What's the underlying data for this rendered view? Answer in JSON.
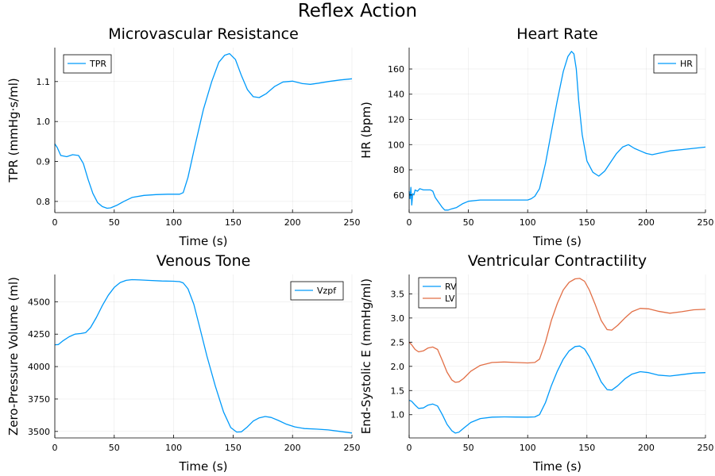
{
  "figure": {
    "title": "Reflex Action"
  },
  "chart_data": [
    {
      "type": "line",
      "title": "Microvascular Resistance",
      "xlabel": "Time (s)",
      "ylabel": "TPR (mmHg·s/ml)",
      "xlim": [
        0,
        250
      ],
      "ylim": [
        0.772,
        1.185
      ],
      "xticks": [
        0,
        50,
        100,
        150,
        200,
        250
      ],
      "yticks": [
        0.8,
        0.9,
        1.0,
        1.1
      ],
      "ytick_labels": [
        "0.8",
        "0.9",
        "1.0",
        "1.1"
      ],
      "grid": true,
      "legend": "top-left",
      "series": [
        {
          "name": "TPR",
          "color": "#009AFA",
          "x": [
            0,
            2,
            5,
            10,
            15,
            20,
            24,
            28,
            32,
            36,
            40,
            44,
            47,
            52,
            58,
            65,
            75,
            85,
            95,
            105,
            108,
            112,
            118,
            125,
            132,
            138,
            143,
            147,
            152,
            157,
            162,
            167,
            172,
            178,
            185,
            192,
            200,
            208,
            215,
            222,
            230,
            240,
            250
          ],
          "y": [
            0.944,
            0.935,
            0.915,
            0.912,
            0.917,
            0.915,
            0.895,
            0.855,
            0.82,
            0.797,
            0.787,
            0.783,
            0.784,
            0.79,
            0.8,
            0.81,
            0.815,
            0.817,
            0.818,
            0.818,
            0.822,
            0.86,
            0.94,
            1.03,
            1.1,
            1.148,
            1.166,
            1.17,
            1.155,
            1.115,
            1.08,
            1.062,
            1.06,
            1.07,
            1.088,
            1.099,
            1.101,
            1.095,
            1.093,
            1.096,
            1.1,
            1.104,
            1.107
          ]
        }
      ]
    },
    {
      "type": "line",
      "title": "Heart Rate",
      "xlabel": "Time (s)",
      "ylabel": "HR (bpm)",
      "xlim": [
        0,
        250
      ],
      "ylim": [
        46,
        177
      ],
      "xticks": [
        0,
        50,
        100,
        150,
        200,
        250
      ],
      "yticks": [
        60,
        80,
        100,
        120,
        140,
        160
      ],
      "ytick_labels": [
        "60",
        "80",
        "100",
        "120",
        "140",
        "160"
      ],
      "grid": true,
      "legend": "top-right",
      "series": [
        {
          "name": "HR",
          "color": "#009AFA",
          "x": [
            0,
            0.8,
            1.5,
            2.2,
            3,
            4,
            5,
            7,
            9,
            12,
            15,
            18,
            20,
            22,
            25,
            28,
            30,
            33,
            36,
            40,
            45,
            50,
            60,
            70,
            80,
            90,
            100,
            103,
            106,
            110,
            115,
            120,
            125,
            130,
            134,
            137,
            139,
            141,
            143,
            146,
            150,
            155,
            160,
            165,
            170,
            175,
            180,
            185,
            190,
            195,
            200,
            205,
            210,
            220,
            230,
            240,
            250
          ],
          "y": [
            63,
            57,
            66,
            52,
            61,
            60,
            64,
            63,
            65,
            64,
            64,
            64,
            63,
            58,
            54,
            50,
            48,
            48,
            49,
            50,
            53,
            55,
            56,
            56,
            56,
            56,
            56,
            57,
            59,
            65,
            85,
            110,
            135,
            158,
            170,
            174,
            172,
            160,
            135,
            108,
            87,
            78,
            75,
            79,
            86,
            93,
            98,
            100,
            97,
            95,
            93,
            92,
            93,
            95,
            96,
            97,
            98
          ]
        }
      ]
    },
    {
      "type": "line",
      "title": "Venous Tone",
      "xlabel": "Time (s)",
      "ylabel": "Zero-Pressure Volume (ml)",
      "xlim": [
        0,
        250
      ],
      "ylim": [
        3450,
        4710
      ],
      "xticks": [
        0,
        50,
        100,
        150,
        200,
        250
      ],
      "yticks": [
        3500,
        3750,
        4000,
        4250,
        4500
      ],
      "ytick_labels": [
        "3500",
        "3750",
        "4000",
        "4250",
        "4500"
      ],
      "grid": true,
      "legend": "top-right",
      "series": [
        {
          "name": "Vzpf",
          "color": "#009AFA",
          "x": [
            0,
            3,
            7,
            12,
            17,
            22,
            26,
            30,
            35,
            40,
            45,
            50,
            55,
            60,
            65,
            72,
            80,
            90,
            100,
            105,
            108,
            112,
            117,
            122,
            128,
            135,
            142,
            148,
            153,
            157,
            162,
            167,
            172,
            177,
            182,
            188,
            195,
            202,
            210,
            220,
            230,
            240,
            250
          ],
          "y": [
            4168,
            4170,
            4200,
            4230,
            4250,
            4255,
            4262,
            4300,
            4380,
            4470,
            4550,
            4610,
            4648,
            4665,
            4670,
            4668,
            4664,
            4660,
            4658,
            4655,
            4645,
            4600,
            4480,
            4300,
            4080,
            3850,
            3650,
            3530,
            3495,
            3497,
            3535,
            3580,
            3605,
            3615,
            3608,
            3585,
            3555,
            3535,
            3522,
            3518,
            3512,
            3500,
            3488
          ]
        }
      ]
    },
    {
      "type": "line",
      "title": "Ventricular Contractility",
      "xlabel": "Time (s)",
      "ylabel": "End-Systolic E (mmHg/ml)",
      "xlim": [
        0,
        250
      ],
      "ylim": [
        0.52,
        3.9
      ],
      "xticks": [
        0,
        50,
        100,
        150,
        200,
        250
      ],
      "yticks": [
        1.0,
        1.5,
        2.0,
        2.5,
        3.0,
        3.5
      ],
      "ytick_labels": [
        "1.0",
        "1.5",
        "2.0",
        "2.5",
        "3.0",
        "3.5"
      ],
      "grid": true,
      "legend": "top-left",
      "series": [
        {
          "name": "RV",
          "color": "#009AFA",
          "x": [
            0,
            2,
            5,
            8,
            12,
            16,
            20,
            24,
            28,
            32,
            36,
            39,
            42,
            46,
            52,
            60,
            70,
            80,
            90,
            100,
            106,
            110,
            115,
            120,
            125,
            130,
            135,
            140,
            144,
            148,
            152,
            157,
            162,
            167,
            171,
            176,
            182,
            188,
            195,
            202,
            210,
            220,
            230,
            240,
            250
          ],
          "y": [
            1.3,
            1.28,
            1.2,
            1.13,
            1.14,
            1.2,
            1.22,
            1.18,
            1.0,
            0.8,
            0.67,
            0.62,
            0.64,
            0.72,
            0.84,
            0.92,
            0.95,
            0.955,
            0.952,
            0.95,
            0.955,
            1.0,
            1.25,
            1.6,
            1.9,
            2.15,
            2.32,
            2.41,
            2.42,
            2.36,
            2.2,
            1.95,
            1.68,
            1.52,
            1.51,
            1.6,
            1.74,
            1.84,
            1.89,
            1.87,
            1.82,
            1.8,
            1.83,
            1.86,
            1.87
          ]
        },
        {
          "name": "LV",
          "color": "#E26F46",
          "x": [
            0,
            2,
            5,
            8,
            12,
            16,
            20,
            24,
            28,
            32,
            36,
            39,
            42,
            46,
            52,
            60,
            70,
            80,
            90,
            100,
            106,
            110,
            115,
            120,
            125,
            130,
            135,
            140,
            144,
            148,
            152,
            157,
            162,
            167,
            171,
            176,
            182,
            188,
            195,
            202,
            210,
            220,
            230,
            240,
            250
          ],
          "y": [
            2.5,
            2.45,
            2.35,
            2.3,
            2.32,
            2.38,
            2.4,
            2.35,
            2.12,
            1.88,
            1.72,
            1.67,
            1.68,
            1.75,
            1.9,
            2.02,
            2.08,
            2.09,
            2.08,
            2.07,
            2.08,
            2.15,
            2.5,
            2.95,
            3.3,
            3.58,
            3.74,
            3.81,
            3.82,
            3.76,
            3.58,
            3.28,
            2.95,
            2.76,
            2.75,
            2.85,
            3.0,
            3.13,
            3.2,
            3.19,
            3.14,
            3.1,
            3.13,
            3.17,
            3.18
          ]
        }
      ]
    }
  ]
}
